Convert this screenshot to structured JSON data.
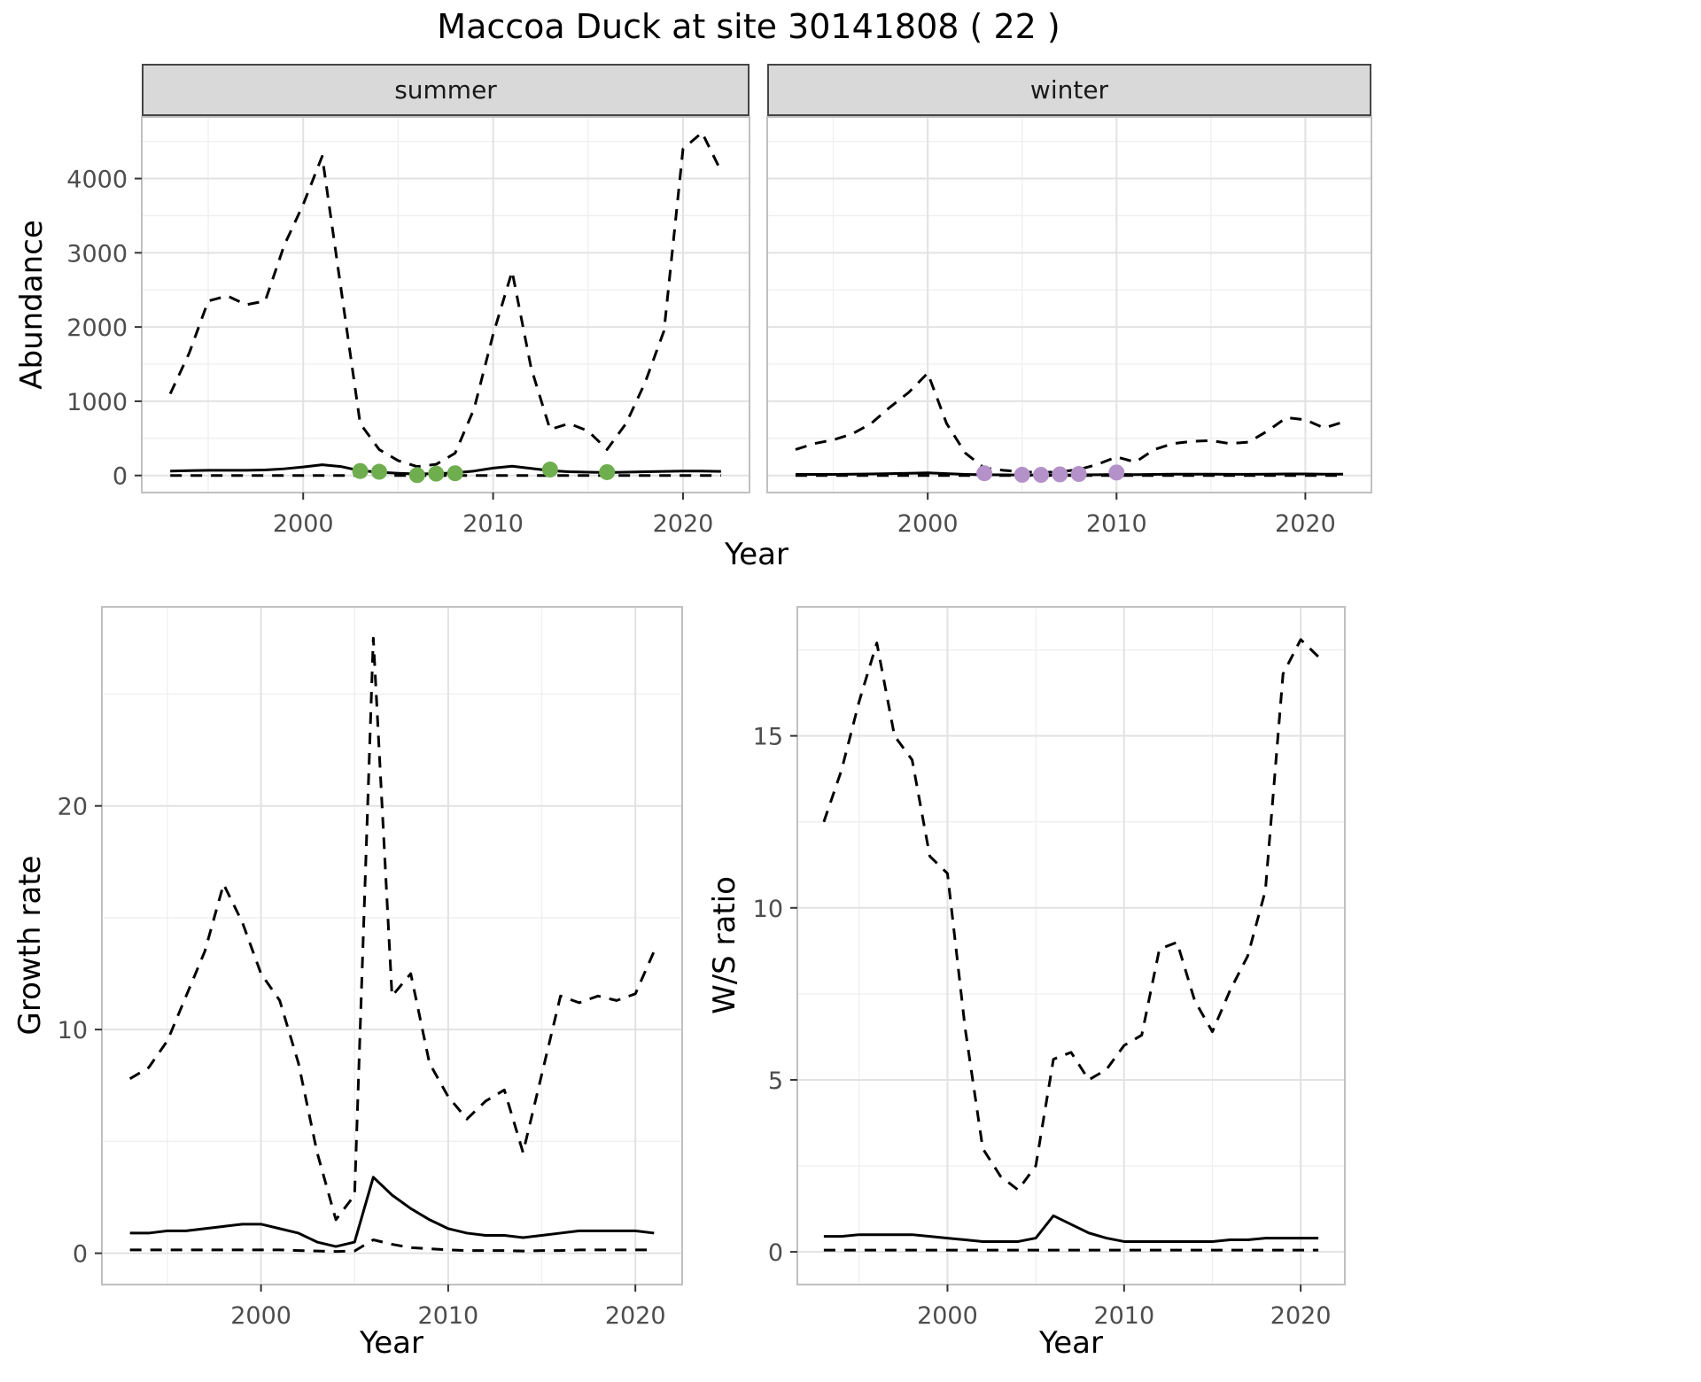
{
  "title": "Maccoa Duck at site 30141808 ( 22 )",
  "colors": {
    "line": "#000000",
    "summer_point": "#6fae4f",
    "winter_point": "#b491c8",
    "grid_major": "#e2e2e2",
    "grid_minor": "#efefef",
    "panel_border": "#c0c0c0",
    "tick_mark": "#333333",
    "tick_text": "#4d4d4d",
    "strip_bg": "#d9d9d9"
  },
  "chart_data": [
    {
      "id": "abundance-summer",
      "type": "line",
      "facet_label": "summer",
      "xlabel": "Year",
      "ylabel": "Abundance",
      "xlim": [
        1991.5,
        2023.5
      ],
      "ylim": [
        -230,
        4830
      ],
      "xticks": [
        2000,
        2010,
        2020
      ],
      "yticks": [
        0,
        1000,
        2000,
        3000,
        4000
      ],
      "x": [
        1993,
        1994,
        1995,
        1996,
        1997,
        1998,
        1999,
        2000,
        2001,
        2002,
        2003,
        2004,
        2005,
        2006,
        2007,
        2008,
        2009,
        2010,
        2011,
        2012,
        2013,
        2014,
        2015,
        2016,
        2017,
        2018,
        2019,
        2020,
        2021,
        2022
      ],
      "series": [
        {
          "name": "upper_dashed",
          "style": "dashed",
          "values": [
            1100,
            1650,
            2350,
            2420,
            2300,
            2350,
            3100,
            3650,
            4300,
            2500,
            700,
            350,
            200,
            120,
            150,
            300,
            900,
            1900,
            2750,
            1450,
            620,
            700,
            600,
            350,
            700,
            1250,
            1950,
            4400,
            4620,
            4100
          ]
        },
        {
          "name": "mean_solid",
          "style": "solid",
          "values": [
            60,
            65,
            70,
            70,
            70,
            75,
            90,
            115,
            145,
            120,
            65,
            45,
            30,
            20,
            25,
            35,
            60,
            100,
            125,
            95,
            65,
            50,
            45,
            40,
            45,
            50,
            55,
            60,
            60,
            55
          ]
        },
        {
          "name": "lower_dashed",
          "style": "dashed",
          "values": [
            0,
            0,
            0,
            0,
            0,
            0,
            0,
            0,
            0,
            0,
            0,
            0,
            0,
            0,
            0,
            0,
            0,
            0,
            0,
            0,
            0,
            0,
            0,
            0,
            0,
            0,
            0,
            0,
            0,
            0
          ]
        }
      ],
      "points": {
        "name": "summer-observations",
        "color_key": "summer_point",
        "data": [
          [
            2003,
            60
          ],
          [
            2004,
            50
          ],
          [
            2006,
            5
          ],
          [
            2007,
            25
          ],
          [
            2008,
            30
          ],
          [
            2013,
            80
          ],
          [
            2016,
            45
          ]
        ]
      }
    },
    {
      "id": "abundance-winter",
      "type": "line",
      "facet_label": "winter",
      "xlabel": "Year",
      "ylabel": "Abundance",
      "xlim": [
        1991.5,
        2023.5
      ],
      "ylim": [
        -230,
        4830
      ],
      "xticks": [
        2000,
        2010,
        2020
      ],
      "yticks": [
        0,
        1000,
        2000,
        3000,
        4000
      ],
      "x": [
        1993,
        1994,
        1995,
        1996,
        1997,
        1998,
        1999,
        2000,
        2001,
        2002,
        2003,
        2004,
        2005,
        2006,
        2007,
        2008,
        2009,
        2010,
        2011,
        2012,
        2013,
        2014,
        2015,
        2016,
        2017,
        2018,
        2019,
        2020,
        2021,
        2022
      ],
      "series": [
        {
          "name": "upper_dashed",
          "style": "dashed",
          "values": [
            350,
            430,
            480,
            560,
            700,
            920,
            1120,
            1380,
            700,
            300,
            100,
            70,
            50,
            40,
            50,
            80,
            150,
            250,
            180,
            350,
            430,
            460,
            470,
            430,
            450,
            600,
            780,
            750,
            640,
            720
          ]
        },
        {
          "name": "mean_solid",
          "style": "solid",
          "values": [
            15,
            15,
            15,
            18,
            20,
            25,
            30,
            35,
            25,
            15,
            10,
            8,
            6,
            5,
            6,
            8,
            10,
            15,
            12,
            15,
            18,
            18,
            18,
            16,
            16,
            18,
            20,
            20,
            18,
            18
          ]
        },
        {
          "name": "lower_dashed",
          "style": "dashed",
          "values": [
            0,
            0,
            0,
            0,
            0,
            0,
            0,
            0,
            0,
            0,
            0,
            0,
            0,
            0,
            0,
            0,
            0,
            0,
            0,
            0,
            0,
            0,
            0,
            0,
            0,
            0,
            0,
            0,
            0,
            0
          ]
        }
      ],
      "points": {
        "name": "winter-observations",
        "color_key": "winter_point",
        "data": [
          [
            2003,
            30
          ],
          [
            2005,
            10
          ],
          [
            2006,
            8
          ],
          [
            2007,
            15
          ],
          [
            2008,
            20
          ],
          [
            2010,
            40
          ]
        ]
      }
    },
    {
      "id": "growth-rate",
      "type": "line",
      "facet_label": "",
      "xlabel": "Year",
      "ylabel": "Growth rate",
      "xlim": [
        1991.5,
        2022.5
      ],
      "ylim": [
        -1.4,
        28.9
      ],
      "xticks": [
        2000,
        2010,
        2020
      ],
      "yticks": [
        0,
        10,
        20
      ],
      "x": [
        1993,
        1994,
        1995,
        1996,
        1997,
        1998,
        1999,
        2000,
        2001,
        2002,
        2003,
        2004,
        2005,
        2006,
        2007,
        2008,
        2009,
        2010,
        2011,
        2012,
        2013,
        2014,
        2015,
        2016,
        2017,
        2018,
        2019,
        2020,
        2021
      ],
      "series": [
        {
          "name": "upper_dashed",
          "style": "dashed",
          "values": [
            7.8,
            8.3,
            9.5,
            11.5,
            13.5,
            16.5,
            14.8,
            12.5,
            11.3,
            8.5,
            4.5,
            1.5,
            2.6,
            27.5,
            11.5,
            12.5,
            8.5,
            7,
            6,
            6.8,
            7.3,
            4.5,
            8,
            11.5,
            11.2,
            11.5,
            11.3,
            11.6,
            13.5
          ]
        },
        {
          "name": "mean_solid",
          "style": "solid",
          "values": [
            0.9,
            0.9,
            1,
            1,
            1.1,
            1.2,
            1.3,
            1.3,
            1.1,
            0.9,
            0.5,
            0.3,
            0.5,
            3.4,
            2.6,
            2,
            1.5,
            1.1,
            0.9,
            0.8,
            0.8,
            0.7,
            0.8,
            0.9,
            1,
            1,
            1,
            1,
            0.9
          ]
        },
        {
          "name": "lower_dashed",
          "style": "dashed",
          "values": [
            0.15,
            0.15,
            0.15,
            0.15,
            0.15,
            0.15,
            0.15,
            0.15,
            0.15,
            0.12,
            0.1,
            0.08,
            0.1,
            0.6,
            0.4,
            0.25,
            0.2,
            0.15,
            0.12,
            0.12,
            0.12,
            0.1,
            0.12,
            0.12,
            0.15,
            0.15,
            0.15,
            0.15,
            0.15
          ]
        }
      ],
      "points": null
    },
    {
      "id": "ws-ratio",
      "type": "line",
      "facet_label": "",
      "xlabel": "Year",
      "ylabel": "W/S ratio",
      "xlim": [
        1991.5,
        2022.5
      ],
      "ylim": [
        -0.95,
        18.75
      ],
      "xticks": [
        2000,
        2010,
        2020
      ],
      "yticks": [
        0,
        5,
        10,
        15
      ],
      "x": [
        1993,
        1994,
        1995,
        1996,
        1997,
        1998,
        1999,
        2000,
        2001,
        2002,
        2003,
        2004,
        2005,
        2006,
        2007,
        2008,
        2009,
        2010,
        2011,
        2012,
        2013,
        2014,
        2015,
        2016,
        2017,
        2018,
        2019,
        2020,
        2021
      ],
      "series": [
        {
          "name": "upper_dashed",
          "style": "dashed",
          "values": [
            12.5,
            14,
            16,
            17.7,
            15,
            14.3,
            11.5,
            11,
            6.5,
            3,
            2.2,
            1.8,
            2.5,
            5.6,
            5.8,
            5,
            5.3,
            6,
            6.3,
            8.8,
            9,
            7.3,
            6.4,
            7.6,
            8.6,
            10.5,
            16.8,
            17.8,
            17.3
          ]
        },
        {
          "name": "mean_solid",
          "style": "solid",
          "values": [
            0.45,
            0.45,
            0.5,
            0.5,
            0.5,
            0.5,
            0.45,
            0.4,
            0.35,
            0.3,
            0.3,
            0.3,
            0.4,
            1.05,
            0.8,
            0.55,
            0.4,
            0.3,
            0.3,
            0.3,
            0.3,
            0.3,
            0.3,
            0.35,
            0.35,
            0.4,
            0.4,
            0.4,
            0.4
          ]
        },
        {
          "name": "lower_dashed",
          "style": "dashed",
          "values": [
            0.05,
            0.05,
            0.05,
            0.05,
            0.05,
            0.05,
            0.05,
            0.05,
            0.05,
            0.05,
            0.05,
            0.05,
            0.05,
            0.05,
            0.05,
            0.05,
            0.05,
            0.05,
            0.05,
            0.05,
            0.05,
            0.05,
            0.05,
            0.05,
            0.05,
            0.05,
            0.05,
            0.05,
            0.05
          ]
        }
      ],
      "points": null
    }
  ]
}
